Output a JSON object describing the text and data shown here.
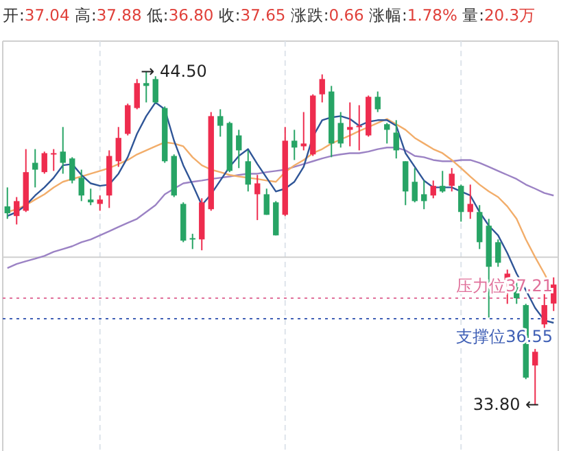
{
  "chart_data": {
    "type": "candlestick",
    "title": "开:37.04 高:37.88 低:36.80 收:37.65 涨跌:0.66 涨幅:1.78% 量:20.3万",
    "categories": [
      null,
      null,
      null,
      null,
      null,
      null,
      null,
      null,
      null,
      null,
      null,
      null,
      null,
      null,
      null,
      null,
      null,
      null,
      null,
      null,
      null,
      null,
      null,
      null,
      null,
      null,
      null,
      null,
      null,
      null,
      null,
      null,
      null,
      null,
      null,
      null,
      null,
      null,
      null,
      null,
      null,
      null,
      null,
      null,
      null,
      null,
      null,
      null,
      null,
      null,
      null,
      null,
      null,
      null,
      null,
      null,
      null,
      null,
      null,
      null
    ],
    "ohlc": [
      [
        40.16,
        40.77,
        39.76,
        39.94
      ],
      [
        39.85,
        40.46,
        39.58,
        40.33
      ],
      [
        40.02,
        42.0,
        39.98,
        41.26
      ],
      [
        41.56,
        42.0,
        40.77,
        41.34
      ],
      [
        41.26,
        41.92,
        41.21,
        41.87
      ],
      [
        41.83,
        42.0,
        41.3,
        41.87
      ],
      [
        41.92,
        42.71,
        41.21,
        41.56
      ],
      [
        41.7,
        41.74,
        40.9,
        40.99
      ],
      [
        41.08,
        41.34,
        40.33,
        40.51
      ],
      [
        40.38,
        40.73,
        40.2,
        40.29
      ],
      [
        40.24,
        40.51,
        40.02,
        40.38
      ],
      [
        40.51,
        41.96,
        40.11,
        41.78
      ],
      [
        41.61,
        42.71,
        41.43,
        42.36
      ],
      [
        42.49,
        43.46,
        42.44,
        43.41
      ],
      [
        43.32,
        44.25,
        43.28,
        44.12
      ],
      [
        44.12,
        44.5,
        43.5,
        44.03
      ],
      [
        44.25,
        44.34,
        43.46,
        43.5
      ],
      [
        43.32,
        43.37,
        41.56,
        41.61
      ],
      [
        41.78,
        41.83,
        40.46,
        40.51
      ],
      [
        40.24,
        40.29,
        39.01,
        39.06
      ],
      [
        39.14,
        39.28,
        38.79,
        39.1
      ],
      [
        39.1,
        40.42,
        38.75,
        40.29
      ],
      [
        40.07,
        43.19,
        40.02,
        43.06
      ],
      [
        43.06,
        43.28,
        42.4,
        42.75
      ],
      [
        42.84,
        42.88,
        41.26,
        41.3
      ],
      [
        42.44,
        42.62,
        41.39,
        41.96
      ],
      [
        41.61,
        41.96,
        40.64,
        40.86
      ],
      [
        40.55,
        41.17,
        39.72,
        40.9
      ],
      [
        40.55,
        40.73,
        39.89,
        39.89
      ],
      [
        40.29,
        40.33,
        39.23,
        39.23
      ],
      [
        39.89,
        42.71,
        39.85,
        42.27
      ],
      [
        42.27,
        42.62,
        41.65,
        42.05
      ],
      [
        42.09,
        43.19,
        41.96,
        42.18
      ],
      [
        41.83,
        43.76,
        41.78,
        43.72
      ],
      [
        43.76,
        44.4,
        43.5,
        44.25
      ],
      [
        43.85,
        44.03,
        41.74,
        42.18
      ],
      [
        42.84,
        43.19,
        42.05,
        42.18
      ],
      [
        42.62,
        43.5,
        42.09,
        42.71
      ],
      [
        42.71,
        43.41,
        41.96,
        42.75
      ],
      [
        42.44,
        43.72,
        42.4,
        43.68
      ],
      [
        43.68,
        43.85,
        43.19,
        43.28
      ],
      [
        42.8,
        42.84,
        42.18,
        42.62
      ],
      [
        42.53,
        42.93,
        41.7,
        41.96
      ],
      [
        41.61,
        41.61,
        40.2,
        40.64
      ],
      [
        40.95,
        41.39,
        40.29,
        40.33
      ],
      [
        40.55,
        40.99,
        40.07,
        40.33
      ],
      [
        40.51,
        40.99,
        40.42,
        40.82
      ],
      [
        40.82,
        41.3,
        40.6,
        40.64
      ],
      [
        40.82,
        41.39,
        40.64,
        41.21
      ],
      [
        40.82,
        40.86,
        39.67,
        39.98
      ],
      [
        39.98,
        40.86,
        39.76,
        40.24
      ],
      [
        39.98,
        40.2,
        38.79,
        39.01
      ],
      [
        39.54,
        39.76,
        36.59,
        38.22
      ],
      [
        39.01,
        39.1,
        38.22,
        38.35
      ],
      [
        37.69,
        38.13,
        37.03,
        38.0
      ],
      [
        37.56,
        37.78,
        37.03,
        37.21
      ],
      [
        36.99,
        37.03,
        34.61,
        34.66
      ],
      [
        35.05,
        35.58,
        33.8,
        35.49
      ],
      [
        36.37,
        37.34,
        36.24,
        36.99
      ],
      [
        37.04,
        37.88,
        36.8,
        37.65
      ]
    ],
    "colors": [
      "#27a465",
      "#ee2c4e",
      "#ee2c4e",
      "#27a465",
      "#ee2c4e",
      "#ee2c4e",
      "#27a465",
      "#27a465",
      "#27a465",
      "#27a465",
      "#ee2c4e",
      "#ee2c4e",
      "#ee2c4e",
      "#ee2c4e",
      "#ee2c4e",
      "#27a465",
      "#27a465",
      "#27a465",
      "#27a465",
      "#27a465",
      "#27a465",
      "#ee2c4e",
      "#ee2c4e",
      "#27a465",
      "#27a465",
      "#27a465",
      "#27a465",
      "#ee2c4e",
      "#27a465",
      "#27a465",
      "#ee2c4e",
      "#27a465",
      "#ee2c4e",
      "#ee2c4e",
      "#ee2c4e",
      "#27a465",
      "#27a465",
      "#ee2c4e",
      "#ee2c4e",
      "#ee2c4e",
      "#27a465",
      "#27a465",
      "#27a465",
      "#27a465",
      "#27a465",
      "#27a465",
      "#ee2c4e",
      "#27a465",
      "#ee2c4e",
      "#27a465",
      "#ee2c4e",
      "#27a465",
      "#27a465",
      "#27a465",
      "#ee2c4e",
      "#27a465",
      "#27a465",
      "#ee2c4e",
      "#ee2c4e",
      "#ee2c4e"
    ],
    "series": [
      {
        "type": "line",
        "color": "#9b82c4",
        "values": [
          38.18,
          38.31,
          38.4,
          38.48,
          38.57,
          38.7,
          38.79,
          38.88,
          39.01,
          39.1,
          39.23,
          39.36,
          39.5,
          39.63,
          39.76,
          39.98,
          40.2,
          40.55,
          40.73,
          40.9,
          40.95,
          40.99,
          41.04,
          41.08,
          41.12,
          41.17,
          41.21,
          41.21,
          41.26,
          41.3,
          41.34,
          41.43,
          41.52,
          41.61,
          41.7,
          41.78,
          41.83,
          41.87,
          41.87,
          41.92,
          42.0,
          42.05,
          42.05,
          41.96,
          41.78,
          41.74,
          41.65,
          41.61,
          41.61,
          41.65,
          41.65,
          41.56,
          41.43,
          41.3,
          41.17,
          41.04,
          40.86,
          40.73,
          40.59,
          40.51
        ]
      },
      {
        "type": "line",
        "color": "#f2ad6a",
        "values": [
          39.98,
          40.07,
          40.2,
          40.38,
          40.55,
          40.77,
          40.95,
          41.04,
          41.12,
          41.21,
          41.3,
          41.39,
          41.52,
          41.65,
          41.83,
          41.96,
          42.09,
          42.22,
          42.18,
          42.09,
          41.74,
          41.48,
          41.34,
          41.26,
          41.17,
          41.12,
          41.08,
          41.04,
          40.99,
          40.95,
          41.26,
          41.48,
          41.65,
          41.87,
          42.0,
          42.18,
          42.31,
          42.44,
          42.58,
          42.71,
          42.84,
          42.97,
          42.8,
          42.62,
          42.36,
          42.18,
          42.0,
          41.87,
          41.65,
          41.39,
          41.12,
          40.86,
          40.64,
          40.46,
          40.16,
          39.76,
          39.1,
          38.53,
          38.0,
          37.43
        ]
      },
      {
        "type": "line",
        "color": "#2f5597",
        "values": [
          39.85,
          39.98,
          40.2,
          40.51,
          40.77,
          41.08,
          41.48,
          41.52,
          41.17,
          40.9,
          40.82,
          40.86,
          41.21,
          41.74,
          42.49,
          43.06,
          43.5,
          43.28,
          42.27,
          41.48,
          40.86,
          40.2,
          40.55,
          40.99,
          41.43,
          41.78,
          42.0,
          41.52,
          41.08,
          40.64,
          40.73,
          40.95,
          41.43,
          42.4,
          42.93,
          43.02,
          43.06,
          42.97,
          42.75,
          42.88,
          42.93,
          42.93,
          42.75,
          41.87,
          41.43,
          40.99,
          40.77,
          40.77,
          40.77,
          40.64,
          40.51,
          39.98,
          39.54,
          39.23,
          38.66,
          38.0,
          37.47,
          36.9,
          36.5,
          36.42
        ]
      }
    ],
    "ref_lines": [
      {
        "axis": "y",
        "value": 38.53,
        "color": "#cfcfcf",
        "line_style": "solid"
      },
      {
        "axis": "y",
        "value": 37.21,
        "label": "压力位37.21",
        "color": "#e0709a",
        "line_style": "dotted"
      },
      {
        "axis": "y",
        "value": 36.55,
        "label": "支撑位36.55",
        "color": "#3f5fb5",
        "line_style": "dotted"
      }
    ],
    "annotations": [
      "→ 44.50",
      "33.80 ←"
    ],
    "grid": true
  }
}
